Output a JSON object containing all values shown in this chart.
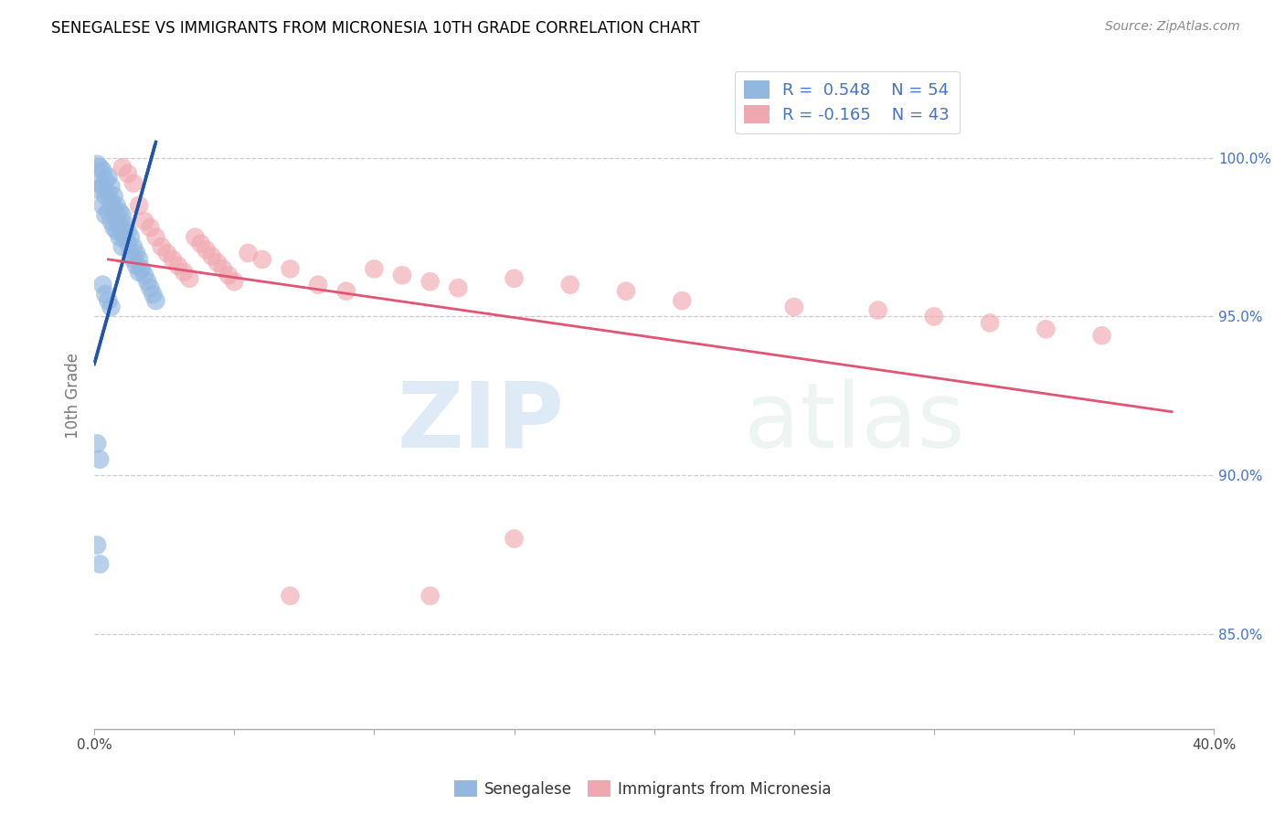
{
  "title": "SENEGALESE VS IMMIGRANTS FROM MICRONESIA 10TH GRADE CORRELATION CHART",
  "source": "Source: ZipAtlas.com",
  "ylabel": "10th Grade",
  "xlim": [
    0.0,
    0.4
  ],
  "ylim": [
    0.82,
    1.03
  ],
  "R_blue": 0.548,
  "N_blue": 54,
  "R_pink": -0.165,
  "N_pink": 43,
  "blue_color": "#92b8e0",
  "pink_color": "#f0a8b0",
  "blue_line_color": "#2255aa",
  "pink_line_color": "#e05575",
  "watermark_zip": "ZIP",
  "watermark_atlas": "atlas",
  "legend_label_blue": "Senegalese",
  "legend_label_pink": "Immigrants from Micronesia",
  "blue_x": [
    0.001,
    0.001,
    0.002,
    0.002,
    0.003,
    0.003,
    0.003,
    0.004,
    0.004,
    0.004,
    0.005,
    0.005,
    0.005,
    0.006,
    0.006,
    0.006,
    0.007,
    0.007,
    0.007,
    0.008,
    0.008,
    0.008,
    0.009,
    0.009,
    0.009,
    0.01,
    0.01,
    0.01,
    0.011,
    0.011,
    0.012,
    0.012,
    0.013,
    0.013,
    0.014,
    0.014,
    0.015,
    0.015,
    0.016,
    0.016,
    0.017,
    0.018,
    0.019,
    0.02,
    0.021,
    0.022,
    0.003,
    0.004,
    0.005,
    0.006,
    0.001,
    0.002,
    0.001,
    0.002
  ],
  "blue_y": [
    0.998,
    0.99,
    0.997,
    0.992,
    0.996,
    0.991,
    0.985,
    0.993,
    0.988,
    0.982,
    0.994,
    0.989,
    0.983,
    0.991,
    0.986,
    0.98,
    0.988,
    0.984,
    0.978,
    0.985,
    0.982,
    0.977,
    0.983,
    0.979,
    0.975,
    0.982,
    0.977,
    0.972,
    0.979,
    0.975,
    0.977,
    0.973,
    0.975,
    0.97,
    0.972,
    0.968,
    0.97,
    0.966,
    0.968,
    0.964,
    0.965,
    0.963,
    0.961,
    0.959,
    0.957,
    0.955,
    0.96,
    0.957,
    0.955,
    0.953,
    0.91,
    0.905,
    0.878,
    0.872
  ],
  "pink_x": [
    0.01,
    0.012,
    0.014,
    0.016,
    0.018,
    0.02,
    0.022,
    0.024,
    0.026,
    0.028,
    0.03,
    0.032,
    0.034,
    0.036,
    0.038,
    0.04,
    0.042,
    0.044,
    0.046,
    0.048,
    0.05,
    0.055,
    0.06,
    0.07,
    0.08,
    0.09,
    0.1,
    0.11,
    0.12,
    0.13,
    0.15,
    0.17,
    0.19,
    0.21,
    0.25,
    0.28,
    0.3,
    0.32,
    0.34,
    0.36,
    0.15,
    0.12,
    0.07
  ],
  "pink_y": [
    0.997,
    0.995,
    0.992,
    0.985,
    0.98,
    0.978,
    0.975,
    0.972,
    0.97,
    0.968,
    0.966,
    0.964,
    0.962,
    0.975,
    0.973,
    0.971,
    0.969,
    0.967,
    0.965,
    0.963,
    0.961,
    0.97,
    0.968,
    0.965,
    0.96,
    0.958,
    0.965,
    0.963,
    0.961,
    0.959,
    0.962,
    0.96,
    0.958,
    0.955,
    0.953,
    0.952,
    0.95,
    0.948,
    0.946,
    0.944,
    0.88,
    0.862,
    0.862
  ],
  "blue_line_x0": 0.0,
  "blue_line_x1": 0.022,
  "blue_line_y0": 0.935,
  "blue_line_y1": 1.005,
  "pink_line_x0": 0.005,
  "pink_line_x1": 0.385,
  "pink_line_y0": 0.968,
  "pink_line_y1": 0.92
}
